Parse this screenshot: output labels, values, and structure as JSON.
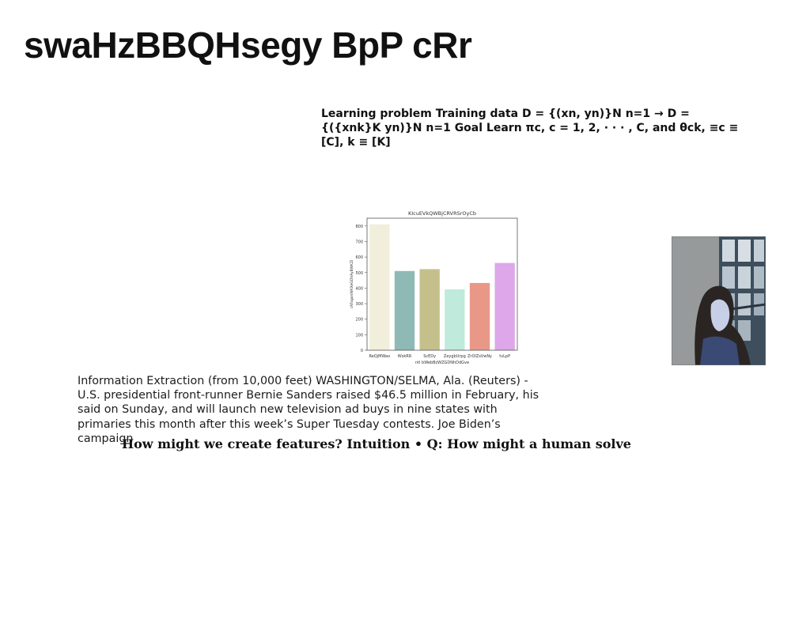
{
  "slide": {
    "title": "swaHzBBQHsegy BpP cRr",
    "math_text": "Learning problem Training data D = {(xn, yn)}N n=1 → D = {({xnk}K yn)}N n=1 Goal Learn πc, c = 1, 2, · · · , C, and θck, ≡c ≡ [C], k ≡ [K]",
    "body_text": "Information Extraction (from 10,000 feet) WASHINGTON/SELMA, Ala. (Reuters) - U.S. presidential front-runner Bernie Sanders raised $46.5 million in February, his said on Sunday, and will launch new television ad buys in nine states with primaries this month after this week’s Super Tuesday contests. Joe Biden’s campaign",
    "intuition_text": "How might we create features? Intuition • Q: How might a human solve"
  },
  "chart_data": {
    "type": "bar",
    "title": "KIcuEVkQWBjCRVRSrOyCb",
    "xlabel": "ntl bWebBzWZGDNhDdGve",
    "ylabel": "cNfxgonWKXeGDVAyBWKZi",
    "categories": [
      "ReQjMWao",
      "WskRR",
      "ScEDy",
      "ZeygbUrpg",
      "ZrOlZsVwNy",
      "tvLpP"
    ],
    "values": [
      810,
      510,
      522,
      392,
      433,
      562
    ],
    "colors": [
      "#f1eedb",
      "#8fb9b4",
      "#c5c08b",
      "#bfeadc",
      "#e99888",
      "#dda7e9"
    ],
    "ylim": [
      0,
      850
    ],
    "yticks": [
      0,
      100,
      200,
      300,
      400,
      500,
      600,
      700,
      800
    ],
    "grid": false
  },
  "photo": {
    "icon": "person-at-window-photo"
  }
}
